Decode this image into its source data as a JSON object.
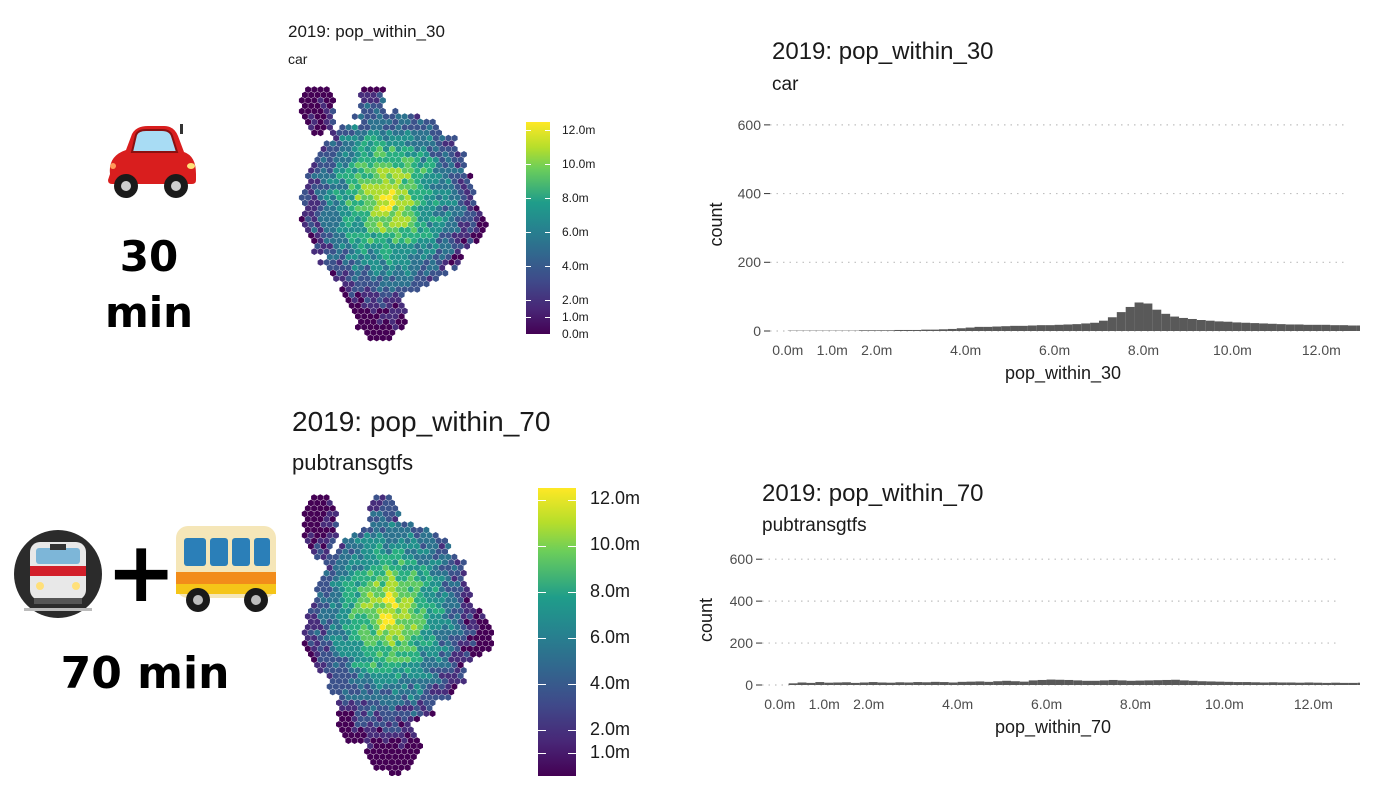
{
  "left_labels": {
    "car": {
      "icon": "car-icon",
      "time_top": "30",
      "time_bottom": "min"
    },
    "transit": {
      "icon_train": "metro-train-icon",
      "plus": "+",
      "icon_bus": "bus-icon",
      "time": "70 min"
    }
  },
  "maps": [
    {
      "title": "2019: pop_within_30",
      "subtitle": "car",
      "legend_labels": [
        "12.0m",
        "10.0m",
        "8.0m",
        "6.0m",
        "4.0m",
        "2.0m",
        "1.0m",
        "0.0m"
      ],
      "legend_values": [
        12,
        10,
        8,
        6,
        4,
        2,
        1,
        0
      ],
      "legend_max": 12.5
    },
    {
      "title": "2019: pop_within_70",
      "subtitle": "pubtransgtfs",
      "legend_labels": [
        "12.0m",
        "10.0m",
        "8.0m",
        "6.0m",
        "4.0m",
        "2.0m",
        "1.0m"
      ],
      "legend_values": [
        12,
        10,
        8,
        6,
        4,
        2,
        1
      ],
      "legend_max": 12.5
    }
  ],
  "chart_data": [
    {
      "type": "bar",
      "title": "2019: pop_within_30",
      "subtitle": "car",
      "xlabel": "pop_within_30",
      "ylabel": "count",
      "xlim": [
        -0.4,
        12.6
      ],
      "ylim": [
        0,
        620
      ],
      "x_ticks": [
        0,
        1,
        2,
        4,
        6,
        8,
        10,
        12
      ],
      "x_tick_labels": [
        "0.0m",
        "1.0m",
        "2.0m",
        "4.0m",
        "6.0m",
        "8.0m",
        "10.0m",
        "12.0m"
      ],
      "y_ticks": [
        0,
        200,
        400,
        600
      ],
      "y_tick_labels": [
        "0",
        "200",
        "400",
        "600"
      ],
      "grid": "horizontal-dotted",
      "bin_width": 0.2,
      "bins_start": 0,
      "counts": [
        1,
        1,
        1,
        1,
        1,
        1,
        1,
        1,
        2,
        2,
        2,
        2,
        3,
        3,
        3,
        4,
        4,
        5,
        6,
        8,
        10,
        12,
        12,
        13,
        14,
        15,
        15,
        16,
        17,
        17,
        18,
        19,
        20,
        22,
        24,
        30,
        40,
        55,
        70,
        83,
        80,
        62,
        50,
        42,
        38,
        35,
        32,
        30,
        28,
        27,
        25,
        24,
        23,
        22,
        21,
        20,
        19,
        19,
        18,
        18,
        18,
        17,
        17,
        16,
        16,
        0,
        0,
        0,
        0,
        0,
        0,
        0,
        0,
        0,
        0,
        0,
        0,
        0,
        0,
        0,
        0,
        0,
        0,
        0,
        0,
        0,
        0,
        0,
        0,
        0,
        0,
        0,
        0,
        0,
        0,
        0,
        0,
        0,
        0,
        0
      ]
    },
    {
      "type": "bar",
      "title": "2019: pop_within_70",
      "subtitle": "pubtransgtfs",
      "xlabel": "pop_within_70",
      "ylabel": "count",
      "xlim": [
        -0.4,
        12.6
      ],
      "ylim": [
        0,
        620
      ],
      "x_ticks": [
        0,
        1,
        2,
        4,
        6,
        8,
        10,
        12
      ],
      "x_tick_labels": [
        "0.0m",
        "1.0m",
        "2.0m",
        "4.0m",
        "6.0m",
        "8.0m",
        "10.0m",
        "12.0m"
      ],
      "y_ticks": [
        0,
        200,
        400,
        600
      ],
      "y_tick_labels": [
        "0",
        "200",
        "400",
        "600"
      ],
      "grid": "horizontal-dotted",
      "bin_width": 0.2,
      "bins_start": 0.2,
      "counts": [
        8,
        12,
        10,
        14,
        11,
        12,
        13,
        10,
        12,
        14,
        12,
        11,
        13,
        12,
        14,
        13,
        15,
        14,
        12,
        15,
        16,
        17,
        15,
        18,
        20,
        18,
        16,
        22,
        24,
        26,
        25,
        24,
        22,
        20,
        20,
        22,
        24,
        22,
        20,
        21,
        22,
        23,
        24,
        25,
        22,
        20,
        18,
        17,
        16,
        15,
        14,
        14,
        13,
        12,
        13,
        12,
        12,
        11,
        12,
        11,
        10,
        11,
        10,
        10,
        11,
        12,
        0,
        0,
        0
      ]
    }
  ],
  "colors": {
    "bar": "#595959",
    "grid": "#bfbfbf",
    "viridis_low": "#440154",
    "viridis_high": "#fde725"
  }
}
